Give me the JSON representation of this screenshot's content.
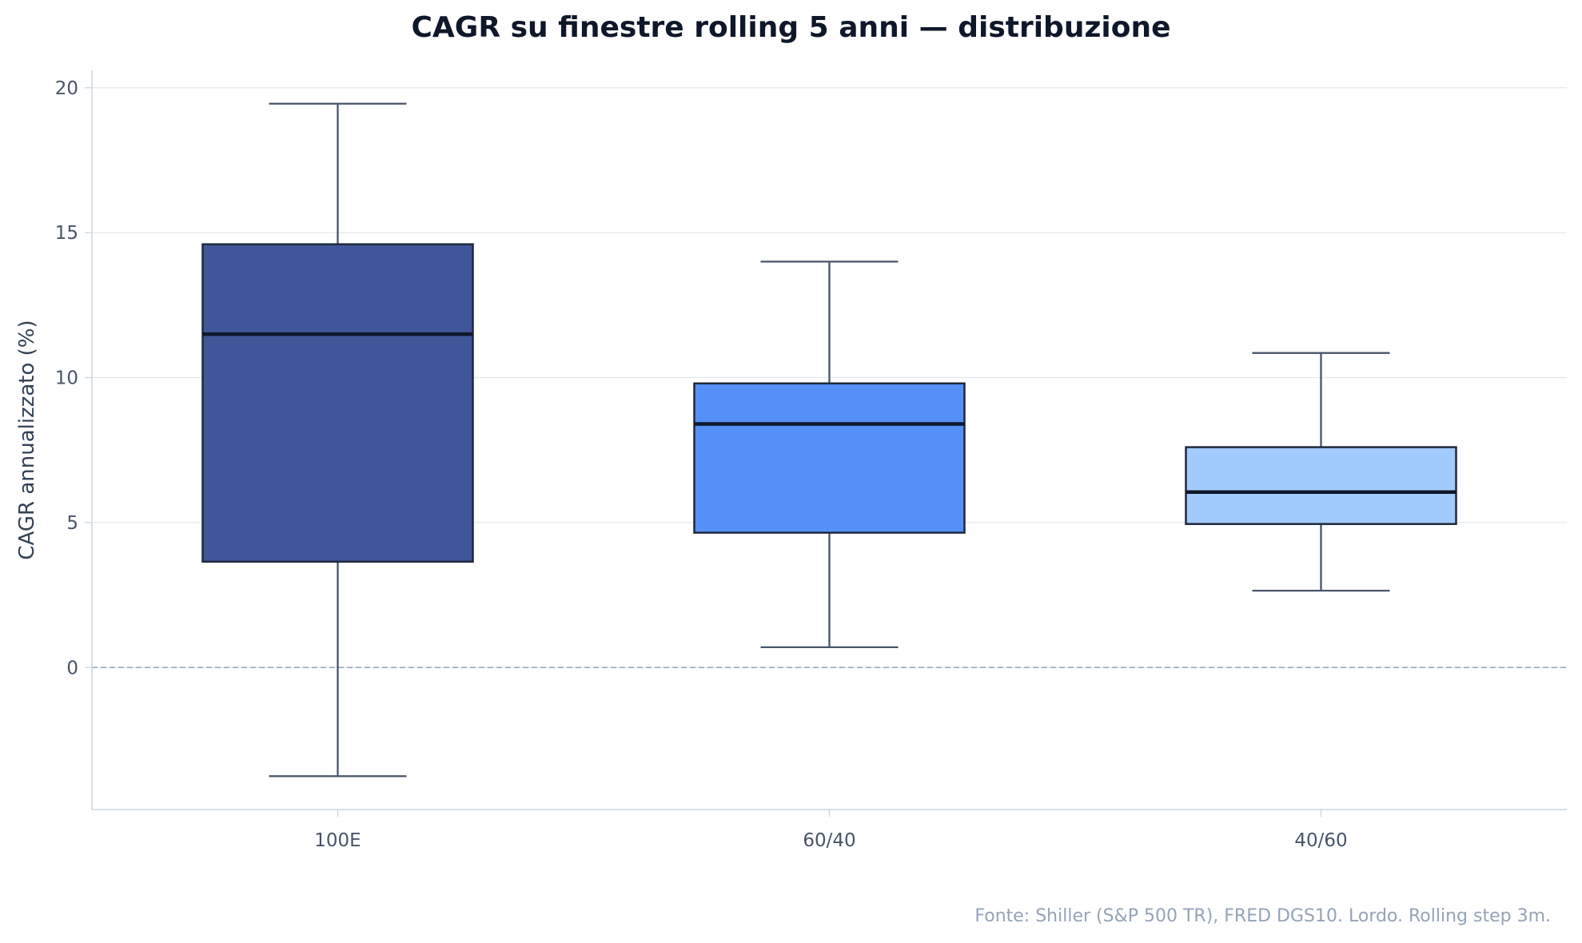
{
  "chart_data": {
    "type": "box",
    "title": "CAGR su finestre rolling 5 anni — distribuzione",
    "xlabel": "",
    "ylabel": "CAGR annualizzato (%)",
    "ylim": [
      -4.9,
      20.6
    ],
    "yticks": [
      0,
      5,
      10,
      15,
      20
    ],
    "ytick_labels": [
      "0",
      "5",
      "10",
      "15",
      "20"
    ],
    "grid": "horizontal",
    "reference_line": {
      "y": 0,
      "style": "dashed"
    },
    "categories": [
      "100E",
      "60/40",
      "40/60"
    ],
    "boxes": [
      {
        "label": "100E",
        "whisker_low": -3.75,
        "q1": 3.65,
        "median": 11.5,
        "q3": 14.6,
        "whisker_high": 19.45,
        "color": "#1e3a8a"
      },
      {
        "label": "60/40",
        "whisker_low": 0.7,
        "q1": 4.65,
        "median": 8.4,
        "q3": 9.8,
        "whisker_high": 14.0,
        "color": "#3b82f6"
      },
      {
        "label": "40/60",
        "whisker_low": 2.65,
        "q1": 4.95,
        "median": 6.05,
        "q3": 7.6,
        "whisker_high": 10.85,
        "color": "#93c5fd"
      }
    ],
    "footnote": "Fonte: Shiller (S&P 500 TR), FRED DGS10. Lordo. Rolling step 3m."
  }
}
